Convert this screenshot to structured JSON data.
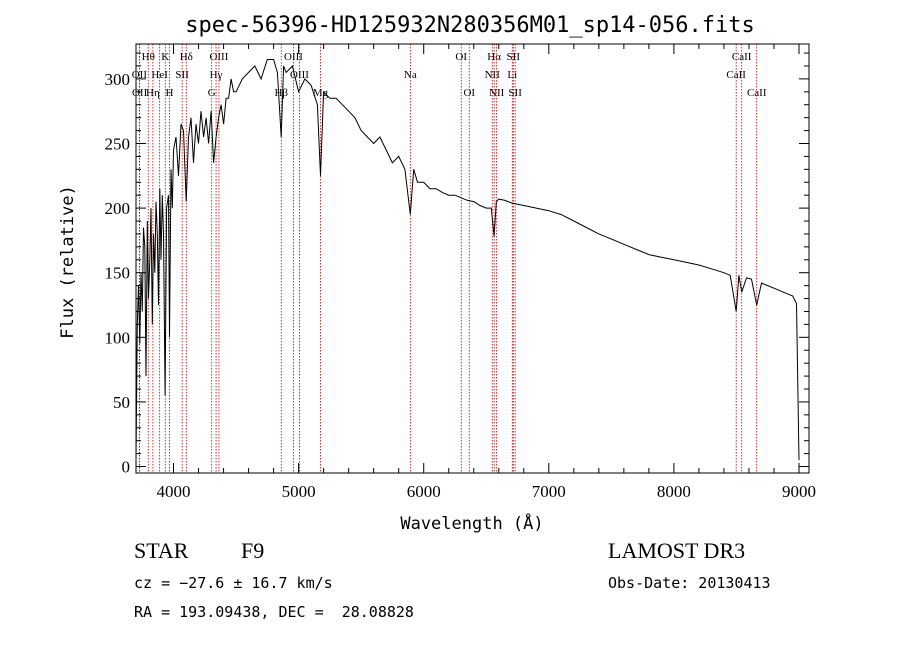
{
  "chart_data": {
    "type": "line",
    "title": "spec-56396-HD125932N280356M01_sp14-056.fits",
    "xlabel": "Wavelength (Å)",
    "ylabel": "Flux (relative)",
    "xlim": [
      3700,
      9080
    ],
    "ylim": [
      -5,
      327
    ],
    "xticks": [
      4000,
      5000,
      6000,
      7000,
      8000,
      9000
    ],
    "yticks": [
      0,
      50,
      100,
      150,
      200,
      250,
      300
    ],
    "series": [
      {
        "name": "flux",
        "color": "#000000",
        "x": [
          3700,
          3710,
          3720,
          3730,
          3740,
          3750,
          3760,
          3770,
          3780,
          3790,
          3800,
          3810,
          3820,
          3830,
          3840,
          3850,
          3860,
          3870,
          3880,
          3890,
          3900,
          3910,
          3920,
          3933,
          3945,
          3960,
          3968,
          3980,
          3990,
          4000,
          4020,
          4040,
          4060,
          4080,
          4101,
          4120,
          4140,
          4160,
          4180,
          4200,
          4220,
          4240,
          4260,
          4280,
          4300,
          4320,
          4340,
          4360,
          4380,
          4400,
          4420,
          4440,
          4460,
          4480,
          4500,
          4550,
          4600,
          4650,
          4700,
          4750,
          4800,
          4830,
          4861,
          4880,
          4900,
          4950,
          5000,
          5050,
          5100,
          5150,
          5175,
          5200,
          5250,
          5300,
          5350,
          5400,
          5450,
          5500,
          5550,
          5600,
          5650,
          5700,
          5750,
          5800,
          5850,
          5893,
          5920,
          5950,
          6000,
          6050,
          6100,
          6150,
          6200,
          6250,
          6300,
          6350,
          6400,
          6450,
          6500,
          6540,
          6563,
          6580,
          6600,
          6650,
          6700,
          6750,
          6800,
          6900,
          7000,
          7100,
          7200,
          7300,
          7400,
          7500,
          7600,
          7700,
          7800,
          7900,
          8000,
          8100,
          8200,
          8300,
          8400,
          8450,
          8498,
          8520,
          8542,
          8580,
          8620,
          8662,
          8700,
          8750,
          8800,
          8850,
          8900,
          8950,
          8980,
          9000
        ],
        "y": [
          5,
          110,
          140,
          95,
          150,
          120,
          185,
          170,
          70,
          190,
          130,
          160,
          200,
          110,
          180,
          150,
          205,
          180,
          125,
          215,
          160,
          210,
          180,
          55,
          200,
          210,
          100,
          230,
          200,
          245,
          255,
          225,
          265,
          260,
          205,
          255,
          270,
          235,
          265,
          250,
          275,
          255,
          270,
          250,
          275,
          235,
          255,
          270,
          280,
          265,
          285,
          285,
          300,
          290,
          290,
          300,
          305,
          310,
          300,
          315,
          315,
          305,
          255,
          310,
          305,
          310,
          290,
          300,
          295,
          280,
          225,
          290,
          285,
          285,
          280,
          275,
          270,
          260,
          255,
          250,
          255,
          245,
          235,
          240,
          230,
          195,
          230,
          220,
          220,
          215,
          215,
          212,
          210,
          210,
          208,
          206,
          205,
          202,
          200,
          200,
          178,
          205,
          207,
          206,
          204,
          203,
          202,
          200,
          198,
          195,
          190,
          185,
          180,
          176,
          172,
          168,
          164,
          162,
          160,
          158,
          156,
          153,
          150,
          148,
          120,
          148,
          135,
          146,
          145,
          125,
          142,
          140,
          138,
          136,
          134,
          132,
          126,
          5
        ]
      }
    ],
    "lines": [
      {
        "label": "Hθ",
        "wl": 3798,
        "row": 1
      },
      {
        "label": "OII",
        "wl": 3727,
        "row": 2
      },
      {
        "label": "Hη",
        "wl": 3835,
        "row": 3
      },
      {
        "label": "OII",
        "wl": 3729,
        "row": 3
      },
      {
        "label": "K",
        "wl": 3934,
        "row": 1
      },
      {
        "label": "HeI",
        "wl": 3889,
        "row": 2
      },
      {
        "label": "H",
        "wl": 3968,
        "row": 3
      },
      {
        "label": "SII",
        "wl": 4069,
        "row": 2
      },
      {
        "label": "Hδ",
        "wl": 4102,
        "row": 1
      },
      {
        "label": "OIII",
        "wl": 4363,
        "row": 1
      },
      {
        "label": "Hγ",
        "wl": 4340,
        "row": 2
      },
      {
        "label": "G",
        "wl": 4305,
        "row": 3
      },
      {
        "label": "OIII",
        "wl": 4959,
        "row": 1
      },
      {
        "label": "OIII",
        "wl": 5007,
        "row": 2
      },
      {
        "label": "Hβ",
        "wl": 4861,
        "row": 3
      },
      {
        "label": "Mg",
        "wl": 5175,
        "row": 3
      },
      {
        "label": "Na",
        "wl": 5893,
        "row": 2
      },
      {
        "label": "OI",
        "wl": 6300,
        "row": 1
      },
      {
        "label": "OI",
        "wl": 6364,
        "row": 3
      },
      {
        "label": "Hα",
        "wl": 6563,
        "row": 1
      },
      {
        "label": "NII",
        "wl": 6548,
        "row": 2
      },
      {
        "label": "NII",
        "wl": 6583,
        "row": 3
      },
      {
        "label": "SII",
        "wl": 6716,
        "row": 1
      },
      {
        "label": "Li",
        "wl": 6708,
        "row": 2
      },
      {
        "label": "SII",
        "wl": 6731,
        "row": 3
      },
      {
        "label": "CaII",
        "wl": 8542,
        "row": 1
      },
      {
        "label": "CaII",
        "wl": 8498,
        "row": 2
      },
      {
        "label": "CaII",
        "wl": 8662,
        "row": 3
      }
    ]
  },
  "info": {
    "class": "STAR",
    "subclass": "F9",
    "survey": "LAMOST DR3",
    "cz": "cz = −27.6 ± 16.7 km/s",
    "obs_date": "Obs-Date: 20130413",
    "radec": "RA = 193.09438, DEC =  28.08828"
  },
  "colors": {
    "spectrum": "#000000",
    "line_marker": "#c00000"
  }
}
